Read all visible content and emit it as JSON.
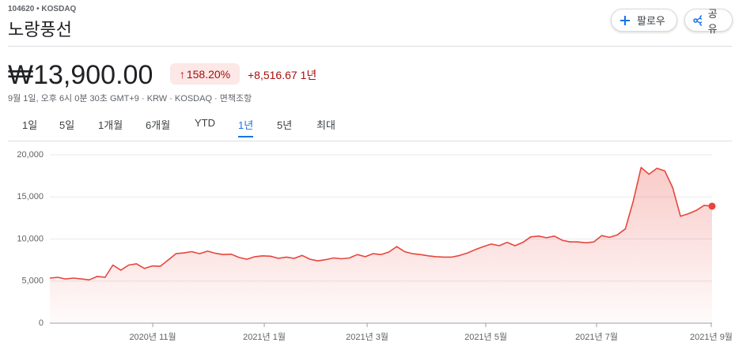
{
  "header": {
    "ticker": "104620 • KOSDAQ",
    "name": "노랑풍선",
    "follow": "팔로우",
    "share": "공유"
  },
  "quote": {
    "price": "₩13,900.00",
    "change_pct": "158.20%",
    "change_abs": "+8,516.67",
    "period": "1년",
    "timestamp": "9월 1일, 오후 6시 0분 30초 GMT+9 · KRW · KOSDAQ · 면책조항"
  },
  "tabs": {
    "items": [
      "1일",
      "5일",
      "1개월",
      "6개월",
      "YTD",
      "1년",
      "5년",
      "최대"
    ],
    "selected": 5
  },
  "chart_data": {
    "type": "line",
    "color": "#e8453c",
    "grid": true,
    "values": [
      5350,
      5450,
      5250,
      5350,
      5250,
      5150,
      5550,
      5450,
      6900,
      6300,
      6900,
      7050,
      6500,
      6800,
      6750,
      7500,
      8250,
      8350,
      8500,
      8250,
      8550,
      8300,
      8150,
      8200,
      7800,
      7600,
      7900,
      8000,
      7950,
      7700,
      7850,
      7700,
      8050,
      7600,
      7400,
      7550,
      7750,
      7650,
      7750,
      8150,
      7900,
      8250,
      8150,
      8450,
      9100,
      8500,
      8250,
      8150,
      8000,
      7900,
      7850,
      7850,
      8050,
      8350,
      8750,
      9100,
      9400,
      9200,
      9600,
      9200,
      9600,
      10250,
      10350,
      10150,
      10350,
      9850,
      9650,
      9650,
      9550,
      9650,
      10400,
      10200,
      10500,
      11200,
      14500,
      18500,
      17700,
      18400,
      18100,
      16100,
      12700,
      13000,
      13400,
      14000,
      13900
    ],
    "xlim": [
      0,
      84
    ],
    "xticks": [
      {
        "value": 13.05,
        "label": "2020년 11월"
      },
      {
        "value": 27.2,
        "label": "2021년 1월"
      },
      {
        "value": 40.25,
        "label": "2021년 3월"
      },
      {
        "value": 55.3,
        "label": "2021년 5월"
      },
      {
        "value": 69.35,
        "label": "2021년 7월"
      },
      {
        "value": 83.9,
        "label": "2021년 9월"
      }
    ],
    "ylim": [
      0,
      20000
    ],
    "yticks": [
      0,
      {
        "value": 5000,
        "label": "5,000"
      },
      {
        "value": 10000,
        "label": "10,000"
      },
      {
        "value": 15000,
        "label": "15,000"
      },
      {
        "value": 20000,
        "label": "20,000"
      }
    ]
  }
}
